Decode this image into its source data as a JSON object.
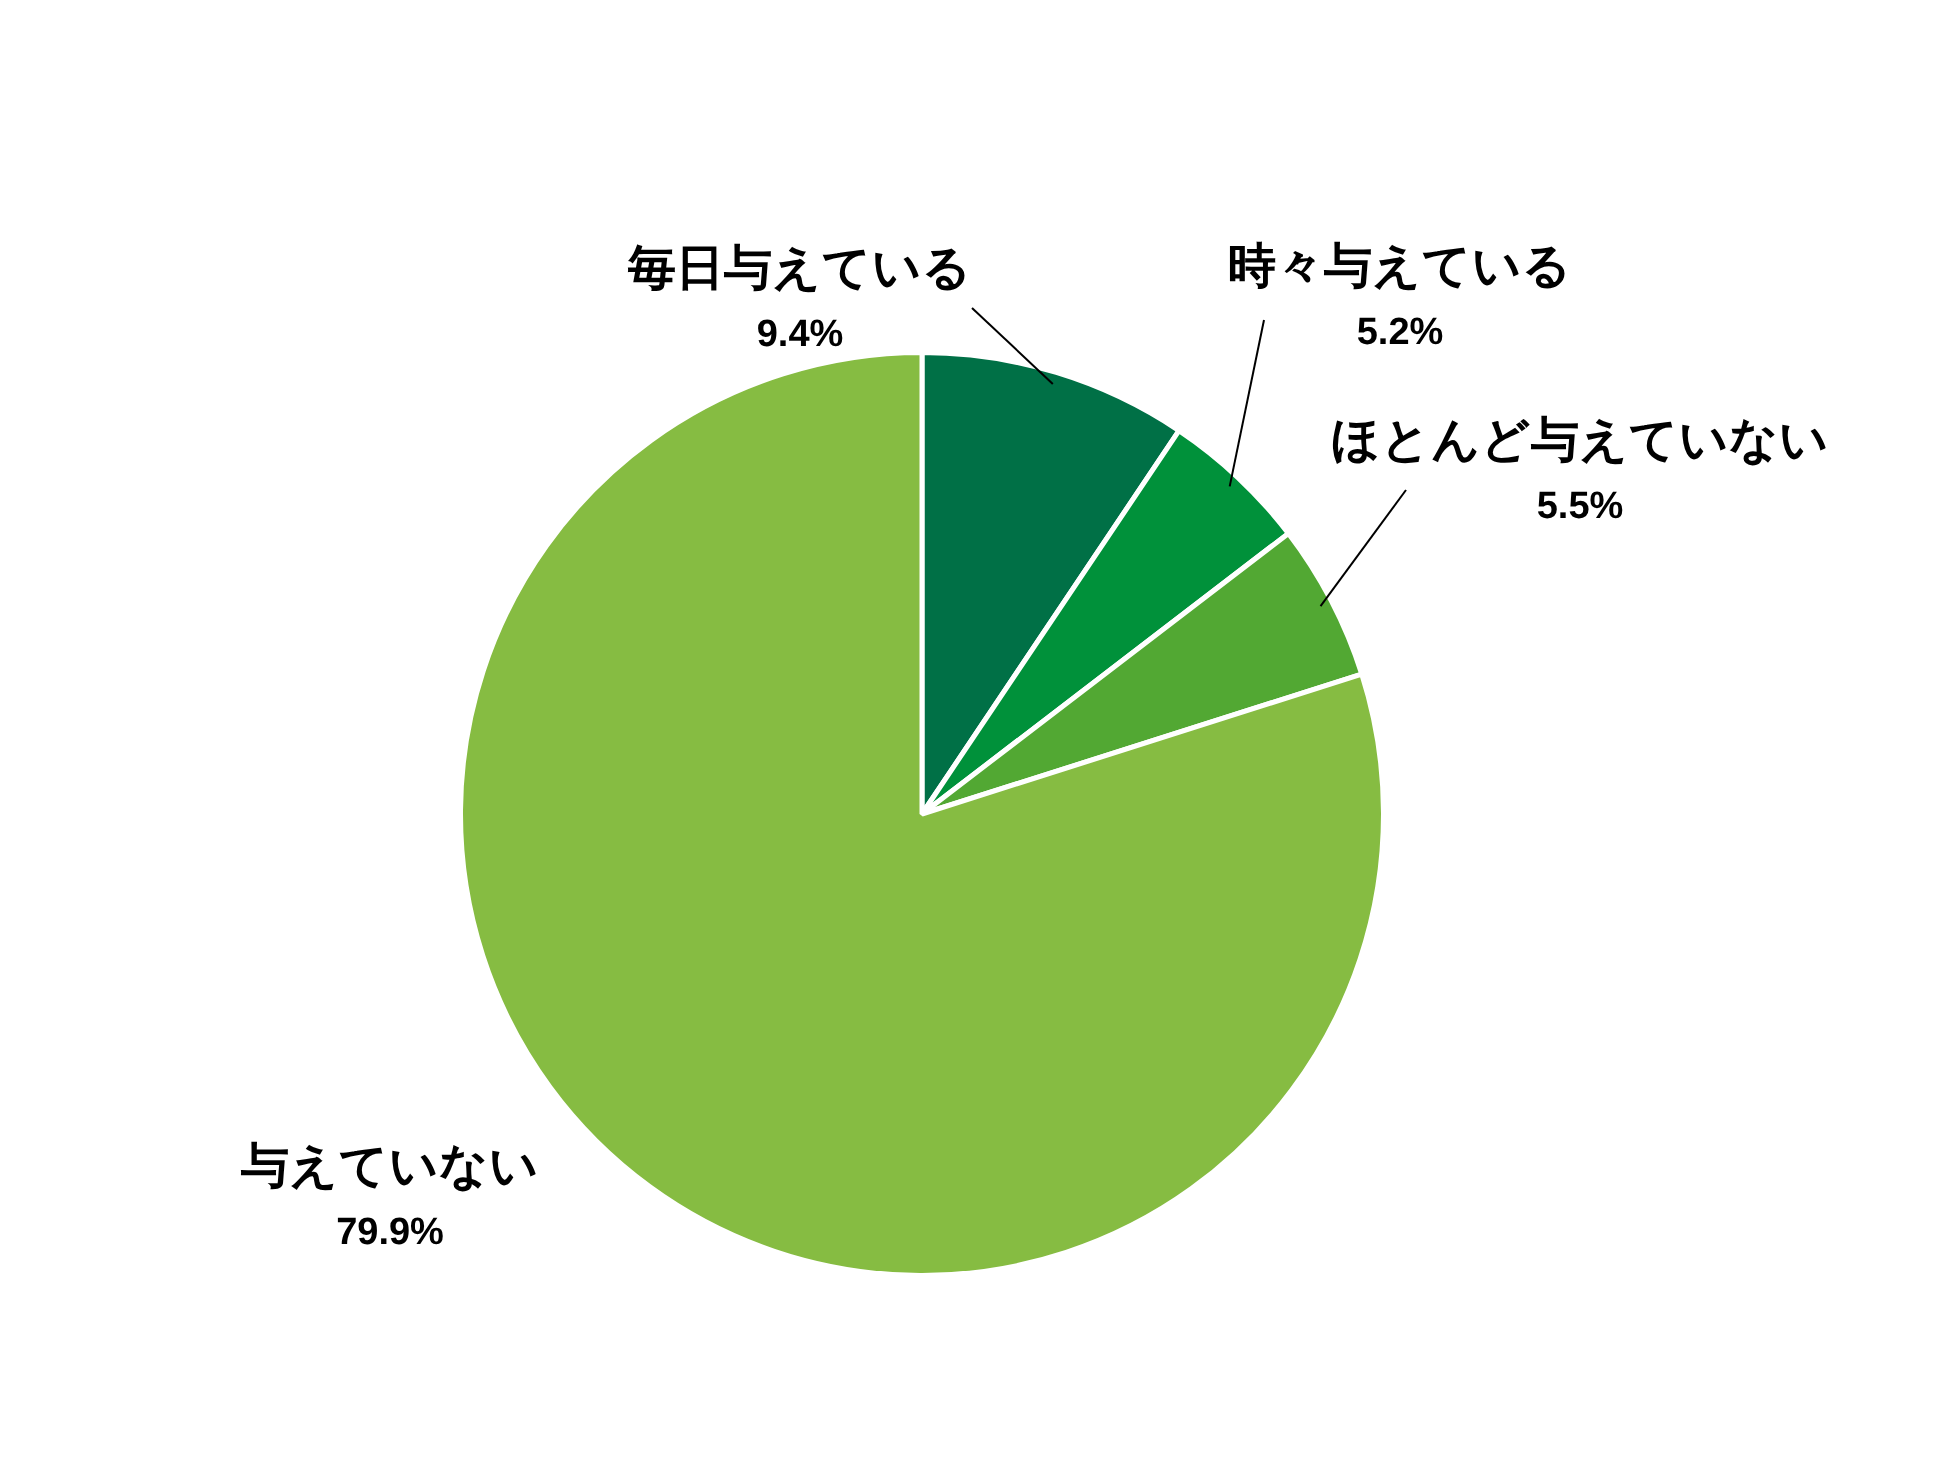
{
  "chart_data": {
    "type": "pie",
    "categories": [
      "毎日与えている",
      "時々与えている",
      "ほとんど与えていない",
      "与えていない"
    ],
    "values": [
      9.4,
      5.2,
      5.5,
      79.9
    ],
    "colors": [
      "#007046",
      "#00913a",
      "#52a833",
      "#86bc42"
    ],
    "value_labels": [
      "9.4%",
      "5.2%",
      "5.5%",
      "79.9%"
    ],
    "legend": false
  }
}
